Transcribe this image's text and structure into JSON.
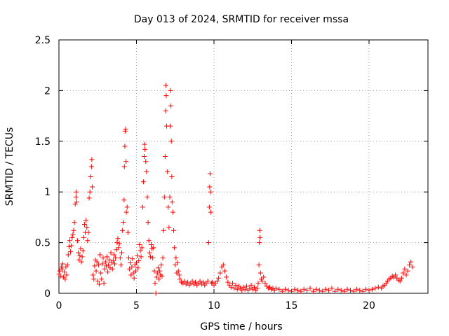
{
  "chart_data": {
    "type": "scatter",
    "marker": "plus",
    "title": "Day 013 of 2024, SRMTID for receiver mssa",
    "xlabel": "GPS time / hours",
    "ylabel": "SRMTID / TECUs",
    "xlim": [
      0,
      23.8
    ],
    "ylim": [
      0,
      2.5
    ],
    "xticks": [
      0,
      5,
      10,
      15,
      20
    ],
    "xtick_labels": [
      "0",
      "5",
      "10",
      "15",
      "20"
    ],
    "yticks": [
      0,
      0.5,
      1,
      1.5,
      2,
      2.5
    ],
    "ytick_labels": [
      "0",
      "0.5",
      "1",
      "1.5",
      "2",
      "2.5"
    ],
    "grid": true,
    "series": [
      {
        "name": "mssa",
        "color": "#ff0000",
        "points": [
          [
            0.0,
            0.19
          ],
          [
            0.05,
            0.22
          ],
          [
            0.1,
            0.17
          ],
          [
            0.15,
            0.26
          ],
          [
            0.2,
            0.24
          ],
          [
            0.25,
            0.29
          ],
          [
            0.3,
            0.16
          ],
          [
            0.35,
            0.21
          ],
          [
            0.4,
            0.14
          ],
          [
            0.45,
            0.26
          ],
          [
            0.5,
            0.18
          ],
          [
            0.55,
            0.28
          ],
          [
            0.6,
            0.38
          ],
          [
            0.65,
            0.46
          ],
          [
            0.7,
            0.52
          ],
          [
            0.75,
            0.41
          ],
          [
            0.8,
            0.47
          ],
          [
            0.85,
            0.55
          ],
          [
            0.9,
            0.58
          ],
          [
            0.95,
            0.62
          ],
          [
            1.0,
            0.7
          ],
          [
            1.05,
            0.88
          ],
          [
            1.1,
            0.95
          ],
          [
            1.12,
            1.0
          ],
          [
            1.15,
            0.9
          ],
          [
            1.2,
            0.52
          ],
          [
            1.25,
            0.4
          ],
          [
            1.3,
            0.33
          ],
          [
            1.35,
            0.37
          ],
          [
            1.4,
            0.44
          ],
          [
            1.45,
            0.31
          ],
          [
            1.5,
            0.36
          ],
          [
            1.55,
            0.42
          ],
          [
            1.6,
            0.55
          ],
          [
            1.65,
            0.68
          ],
          [
            1.7,
            0.6
          ],
          [
            1.75,
            0.72
          ],
          [
            1.8,
            0.65
          ],
          [
            1.85,
            0.52
          ],
          [
            1.9,
            0.6
          ],
          [
            1.95,
            0.94
          ],
          [
            2.0,
            1.0
          ],
          [
            2.05,
            1.15
          ],
          [
            2.1,
            1.25
          ],
          [
            2.12,
            1.32
          ],
          [
            2.15,
            1.05
          ],
          [
            2.2,
            0.18
          ],
          [
            2.25,
            0.14
          ],
          [
            2.3,
            0.27
          ],
          [
            2.35,
            0.33
          ],
          [
            2.4,
            0.22
          ],
          [
            2.45,
            0.31
          ],
          [
            2.5,
            0.12
          ],
          [
            2.55,
            0.28
          ],
          [
            2.6,
            0.09
          ],
          [
            2.65,
            0.38
          ],
          [
            2.7,
            0.2
          ],
          [
            2.75,
            0.14
          ],
          [
            2.8,
            0.29
          ],
          [
            2.85,
            0.35
          ],
          [
            2.9,
            0.1
          ],
          [
            2.95,
            0.24
          ],
          [
            3.0,
            0.31
          ],
          [
            3.05,
            0.27
          ],
          [
            3.1,
            0.36
          ],
          [
            3.15,
            0.21
          ],
          [
            3.2,
            0.28
          ],
          [
            3.25,
            0.33
          ],
          [
            3.3,
            0.25
          ],
          [
            3.35,
            0.4
          ],
          [
            3.4,
            0.3
          ],
          [
            3.45,
            0.24
          ],
          [
            3.5,
            0.32
          ],
          [
            3.55,
            0.38
          ],
          [
            3.6,
            0.29
          ],
          [
            3.65,
            0.35
          ],
          [
            3.7,
            0.43
          ],
          [
            3.75,
            0.5
          ],
          [
            3.8,
            0.54
          ],
          [
            3.85,
            0.45
          ],
          [
            3.9,
            0.49
          ],
          [
            3.95,
            0.35
          ],
          [
            4.0,
            0.28
          ],
          [
            4.05,
            0.4
          ],
          [
            4.1,
            0.62
          ],
          [
            4.15,
            0.7
          ],
          [
            4.2,
            0.92
          ],
          [
            4.22,
            1.25
          ],
          [
            4.25,
            1.45
          ],
          [
            4.27,
            1.6
          ],
          [
            4.3,
            1.62
          ],
          [
            4.33,
            1.3
          ],
          [
            4.35,
            0.8
          ],
          [
            4.4,
            0.85
          ],
          [
            4.45,
            0.6
          ],
          [
            4.5,
            0.35
          ],
          [
            4.55,
            0.24
          ],
          [
            4.6,
            0.3
          ],
          [
            4.65,
            0.18
          ],
          [
            4.7,
            0.26
          ],
          [
            4.75,
            0.34
          ],
          [
            4.8,
            0.2
          ],
          [
            4.85,
            0.15
          ],
          [
            4.9,
            0.28
          ],
          [
            4.95,
            0.22
          ],
          [
            5.0,
            0.3
          ],
          [
            5.05,
            0.37
          ],
          [
            5.1,
            0.25
          ],
          [
            5.15,
            0.32
          ],
          [
            5.2,
            0.48
          ],
          [
            5.25,
            0.42
          ],
          [
            5.3,
            0.36
          ],
          [
            5.35,
            0.45
          ],
          [
            5.4,
            0.85
          ],
          [
            5.45,
            1.1
          ],
          [
            5.5,
            1.35
          ],
          [
            5.52,
            1.47
          ],
          [
            5.55,
            1.42
          ],
          [
            5.6,
            1.3
          ],
          [
            5.65,
            1.2
          ],
          [
            5.7,
            0.95
          ],
          [
            5.75,
            0.7
          ],
          [
            5.8,
            0.52
          ],
          [
            5.85,
            0.4
          ],
          [
            5.9,
            0.36
          ],
          [
            5.95,
            0.48
          ],
          [
            6.0,
            0.44
          ],
          [
            6.05,
            0.35
          ],
          [
            6.1,
            0.45
          ],
          [
            6.15,
            0.22
          ],
          [
            6.2,
            0.1
          ],
          [
            6.25,
            0.0
          ],
          [
            6.3,
            0.16
          ],
          [
            6.35,
            0.2
          ],
          [
            6.4,
            0.25
          ],
          [
            6.45,
            0.14
          ],
          [
            6.5,
            0.22
          ],
          [
            6.55,
            0.18
          ],
          [
            6.6,
            0.28
          ],
          [
            6.65,
            0.17
          ],
          [
            6.7,
            0.35
          ],
          [
            6.75,
            0.62
          ],
          [
            6.8,
            0.95
          ],
          [
            6.85,
            1.35
          ],
          [
            6.88,
            1.8
          ],
          [
            6.9,
            2.05
          ],
          [
            6.92,
            1.95
          ],
          [
            6.95,
            1.65
          ],
          [
            7.0,
            1.2
          ],
          [
            7.05,
            0.85
          ],
          [
            7.1,
            0.65
          ],
          [
            7.15,
            0.95
          ],
          [
            7.18,
            1.65
          ],
          [
            7.2,
            2.0
          ],
          [
            7.22,
            1.85
          ],
          [
            7.25,
            1.5
          ],
          [
            7.28,
            1.15
          ],
          [
            7.3,
            0.9
          ],
          [
            7.35,
            0.8
          ],
          [
            7.4,
            0.62
          ],
          [
            7.45,
            0.45
          ],
          [
            7.5,
            0.28
          ],
          [
            7.55,
            0.35
          ],
          [
            7.6,
            0.2
          ],
          [
            7.65,
            0.3
          ],
          [
            7.7,
            0.22
          ],
          [
            7.75,
            0.18
          ],
          [
            7.8,
            0.14
          ],
          [
            7.9,
            0.11
          ],
          [
            8.0,
            0.1
          ],
          [
            8.1,
            0.12
          ],
          [
            8.2,
            0.09
          ],
          [
            8.3,
            0.11
          ],
          [
            8.4,
            0.08
          ],
          [
            8.5,
            0.1
          ],
          [
            8.6,
            0.12
          ],
          [
            8.7,
            0.09
          ],
          [
            8.8,
            0.11
          ],
          [
            8.9,
            0.08
          ],
          [
            9.0,
            0.1
          ],
          [
            9.1,
            0.12
          ],
          [
            9.2,
            0.09
          ],
          [
            9.3,
            0.11
          ],
          [
            9.4,
            0.08
          ],
          [
            9.5,
            0.1
          ],
          [
            9.6,
            0.12
          ],
          [
            9.65,
            0.5
          ],
          [
            9.7,
            0.85
          ],
          [
            9.72,
            1.05
          ],
          [
            9.75,
            1.18
          ],
          [
            9.78,
            1.0
          ],
          [
            9.8,
            0.8
          ],
          [
            9.85,
            0.1
          ],
          [
            9.9,
            0.11
          ],
          [
            10.0,
            0.08
          ],
          [
            10.1,
            0.1
          ],
          [
            10.2,
            0.12
          ],
          [
            10.3,
            0.15
          ],
          [
            10.4,
            0.2
          ],
          [
            10.5,
            0.26
          ],
          [
            10.6,
            0.28
          ],
          [
            10.7,
            0.22
          ],
          [
            10.8,
            0.16
          ],
          [
            10.9,
            0.11
          ],
          [
            11.0,
            0.08
          ],
          [
            11.1,
            0.06
          ],
          [
            11.2,
            0.1
          ],
          [
            11.3,
            0.05
          ],
          [
            11.4,
            0.08
          ],
          [
            11.5,
            0.04
          ],
          [
            11.6,
            0.07
          ],
          [
            11.7,
            0.05
          ],
          [
            11.8,
            0.03
          ],
          [
            11.9,
            0.06
          ],
          [
            12.0,
            0.04
          ],
          [
            12.1,
            0.07
          ],
          [
            12.2,
            0.03
          ],
          [
            12.3,
            0.05
          ],
          [
            12.4,
            0.08
          ],
          [
            12.5,
            0.04
          ],
          [
            12.6,
            0.06
          ],
          [
            12.7,
            0.03
          ],
          [
            12.8,
            0.05
          ],
          [
            12.85,
            0.1
          ],
          [
            12.9,
            0.28
          ],
          [
            12.93,
            0.5
          ],
          [
            12.95,
            0.62
          ],
          [
            12.97,
            0.55
          ],
          [
            13.0,
            0.2
          ],
          [
            13.05,
            0.14
          ],
          [
            13.1,
            0.12
          ],
          [
            13.2,
            0.16
          ],
          [
            13.3,
            0.1
          ],
          [
            13.4,
            0.07
          ],
          [
            13.5,
            0.05
          ],
          [
            13.6,
            0.06
          ],
          [
            13.7,
            0.04
          ],
          [
            13.8,
            0.05
          ],
          [
            13.9,
            0.03
          ],
          [
            14.0,
            0.05
          ],
          [
            14.2,
            0.04
          ],
          [
            14.4,
            0.02
          ],
          [
            14.6,
            0.04
          ],
          [
            14.8,
            0.03
          ],
          [
            15.0,
            0.02
          ],
          [
            15.2,
            0.04
          ],
          [
            15.4,
            0.03
          ],
          [
            15.6,
            0.02
          ],
          [
            15.8,
            0.04
          ],
          [
            16.0,
            0.03
          ],
          [
            16.2,
            0.05
          ],
          [
            16.4,
            0.02
          ],
          [
            16.6,
            0.04
          ],
          [
            16.8,
            0.03
          ],
          [
            17.0,
            0.02
          ],
          [
            17.2,
            0.04
          ],
          [
            17.4,
            0.03
          ],
          [
            17.6,
            0.05
          ],
          [
            17.8,
            0.02
          ],
          [
            18.0,
            0.04
          ],
          [
            18.2,
            0.03
          ],
          [
            18.4,
            0.02
          ],
          [
            18.6,
            0.04
          ],
          [
            18.8,
            0.03
          ],
          [
            19.0,
            0.02
          ],
          [
            19.2,
            0.04
          ],
          [
            19.4,
            0.03
          ],
          [
            19.6,
            0.02
          ],
          [
            19.8,
            0.04
          ],
          [
            20.0,
            0.03
          ],
          [
            20.2,
            0.04
          ],
          [
            20.4,
            0.05
          ],
          [
            20.6,
            0.06
          ],
          [
            20.8,
            0.05
          ],
          [
            20.9,
            0.07
          ],
          [
            21.0,
            0.08
          ],
          [
            21.1,
            0.1
          ],
          [
            21.2,
            0.12
          ],
          [
            21.3,
            0.14
          ],
          [
            21.4,
            0.15
          ],
          [
            21.5,
            0.17
          ],
          [
            21.6,
            0.16
          ],
          [
            21.7,
            0.18
          ],
          [
            21.8,
            0.15
          ],
          [
            21.9,
            0.13
          ],
          [
            22.0,
            0.12
          ],
          [
            22.1,
            0.15
          ],
          [
            22.2,
            0.2
          ],
          [
            22.3,
            0.24
          ],
          [
            22.4,
            0.18
          ],
          [
            22.5,
            0.22
          ],
          [
            22.6,
            0.28
          ],
          [
            22.7,
            0.31
          ],
          [
            22.8,
            0.26
          ]
        ]
      }
    ]
  }
}
